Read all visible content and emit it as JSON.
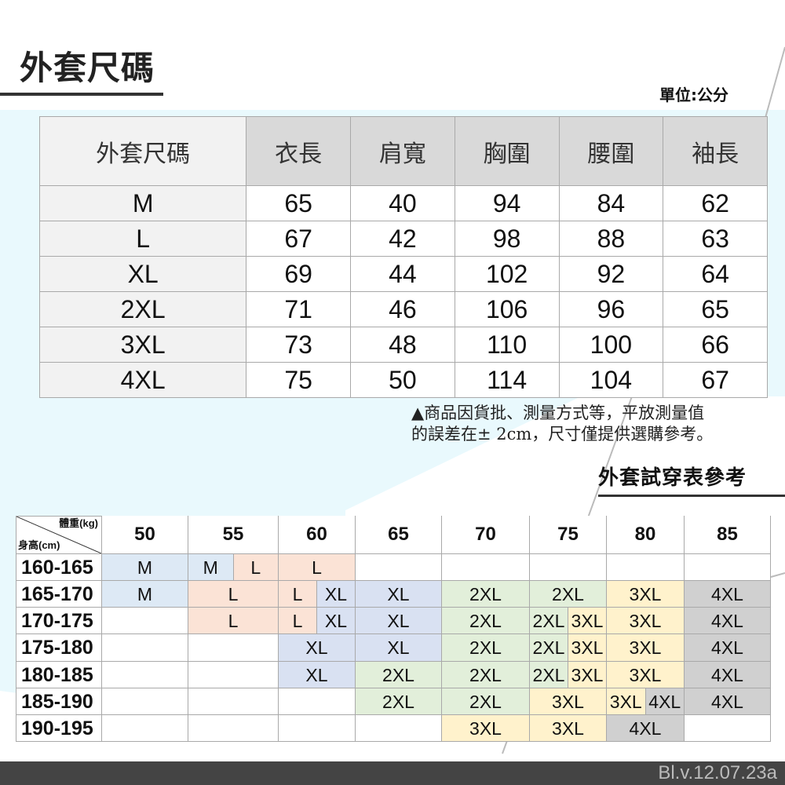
{
  "title": "外套尺碼",
  "unit": "單位:公分",
  "size_table": {
    "headers": [
      "外套尺碼",
      "衣長",
      "肩寬",
      "胸圍",
      "腰圍",
      "袖長"
    ],
    "rows": [
      [
        "M",
        "65",
        "40",
        "94",
        "84",
        "62"
      ],
      [
        "L",
        "67",
        "42",
        "98",
        "88",
        "63"
      ],
      [
        "XL",
        "69",
        "44",
        "102",
        "92",
        "64"
      ],
      [
        "2XL",
        "71",
        "46",
        "106",
        "96",
        "65"
      ],
      [
        "3XL",
        "73",
        "48",
        "110",
        "100",
        "66"
      ],
      [
        "4XL",
        "75",
        "50",
        "114",
        "104",
        "67"
      ]
    ]
  },
  "note": "▲商品因貨批、測量方式等，平放測量值\n的誤差在± 2cm，尺寸僅提供選購參考。",
  "fit_title": "外套試穿表參考",
  "fit_table": {
    "weight_label": "體重(kg)",
    "height_label": "身高(cm)",
    "weights": [
      "50",
      "55",
      "60",
      "65",
      "70",
      "75",
      "80",
      "85"
    ],
    "size_colors": {
      "M": "#dde9f5",
      "L": "#fbe3d6",
      "XL": "#d9e1f2",
      "2XL": "#e2efda",
      "3XL": "#fff2cc",
      "4XL": "#d0d0d0",
      "": "#ffffff"
    },
    "rows": [
      {
        "height": "160-165",
        "cells": [
          [
            "M",
            2
          ],
          [
            "M",
            1
          ],
          [
            "L",
            1
          ],
          [
            "L",
            2
          ],
          [
            "",
            2
          ],
          [
            "",
            2
          ],
          [
            "",
            2
          ],
          [
            "",
            2
          ],
          [
            "",
            2
          ]
        ]
      },
      {
        "height": "165-170",
        "cells": [
          [
            "M",
            2
          ],
          [
            "L",
            2
          ],
          [
            "L",
            1
          ],
          [
            "XL",
            1
          ],
          [
            "XL",
            2
          ],
          [
            "2XL",
            2
          ],
          [
            "2XL",
            2
          ],
          [
            "3XL",
            2
          ],
          [
            "4XL",
            2
          ]
        ]
      },
      {
        "height": "170-175",
        "cells": [
          [
            "",
            2
          ],
          [
            "L",
            2
          ],
          [
            "L",
            1
          ],
          [
            "XL",
            1
          ],
          [
            "XL",
            2
          ],
          [
            "2XL",
            2
          ],
          [
            "2XL",
            1
          ],
          [
            "3XL",
            1
          ],
          [
            "3XL",
            2
          ],
          [
            "4XL",
            2
          ]
        ]
      },
      {
        "height": "175-180",
        "cells": [
          [
            "",
            2
          ],
          [
            "",
            2
          ],
          [
            "XL",
            2
          ],
          [
            "XL",
            2
          ],
          [
            "2XL",
            2
          ],
          [
            "2XL",
            1
          ],
          [
            "3XL",
            1
          ],
          [
            "3XL",
            2
          ],
          [
            "4XL",
            2
          ]
        ]
      },
      {
        "height": "180-185",
        "cells": [
          [
            "",
            2
          ],
          [
            "",
            2
          ],
          [
            "XL",
            2
          ],
          [
            "2XL",
            2
          ],
          [
            "2XL",
            2
          ],
          [
            "2XL",
            1
          ],
          [
            "3XL",
            1
          ],
          [
            "3XL",
            2
          ],
          [
            "4XL",
            2
          ]
        ]
      },
      {
        "height": "185-190",
        "cells": [
          [
            "",
            2
          ],
          [
            "",
            2
          ],
          [
            "",
            2
          ],
          [
            "2XL",
            2
          ],
          [
            "2XL",
            2
          ],
          [
            "3XL",
            2
          ],
          [
            "3XL",
            1
          ],
          [
            "4XL",
            1
          ],
          [
            "4XL",
            2
          ]
        ]
      },
      {
        "height": "190-195",
        "cells": [
          [
            "",
            2
          ],
          [
            "",
            2
          ],
          [
            "",
            2
          ],
          [
            "",
            2
          ],
          [
            "3XL",
            2
          ],
          [
            "3XL",
            2
          ],
          [
            "4XL",
            2
          ],
          [
            "",
            2
          ]
        ]
      }
    ]
  },
  "footer_code": "Bl.v.12.07.23a"
}
